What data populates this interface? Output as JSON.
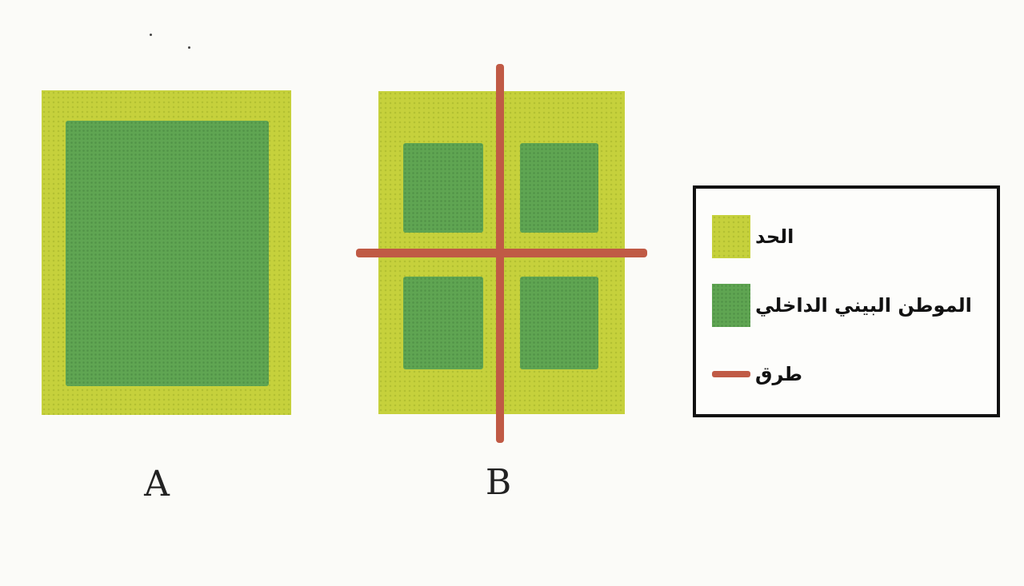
{
  "panels": [
    {
      "label": "A"
    },
    {
      "label": "B"
    }
  ],
  "legend": {
    "items": [
      {
        "text": "الحد",
        "swatch_color": "#c6d13c"
      },
      {
        "text": "الموطن البيني الداخلي",
        "swatch_color": "#5fa552"
      },
      {
        "text": "طرق",
        "swatch_color": "#c05a45"
      }
    ]
  },
  "colors": {
    "edge": "#c6d13c",
    "interior": "#5fa552",
    "road": "#c05a45",
    "border": "#111111"
  }
}
